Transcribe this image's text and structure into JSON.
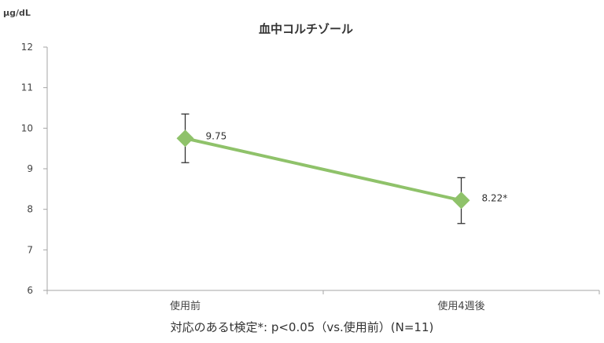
{
  "chart_data": {
    "type": "line",
    "title": "血中コルチゾール",
    "unit_label": "μg/dL",
    "footnote": "対応のあるt検定*: p<0.05（vs.使用前）(N=11)",
    "categories": [
      "使用前",
      "使用4週後"
    ],
    "series": [
      {
        "values": [
          9.75,
          8.22
        ],
        "error_low": [
          9.15,
          7.65
        ],
        "error_high": [
          10.35,
          8.78
        ],
        "data_labels": [
          "9.75",
          "8.22*"
        ],
        "color": "#8fc26a"
      }
    ],
    "ylim": [
      6,
      12
    ],
    "yticks": [
      "6",
      "7",
      "8",
      "9",
      "10",
      "11",
      "12"
    ],
    "grid": false,
    "legend": "none"
  }
}
